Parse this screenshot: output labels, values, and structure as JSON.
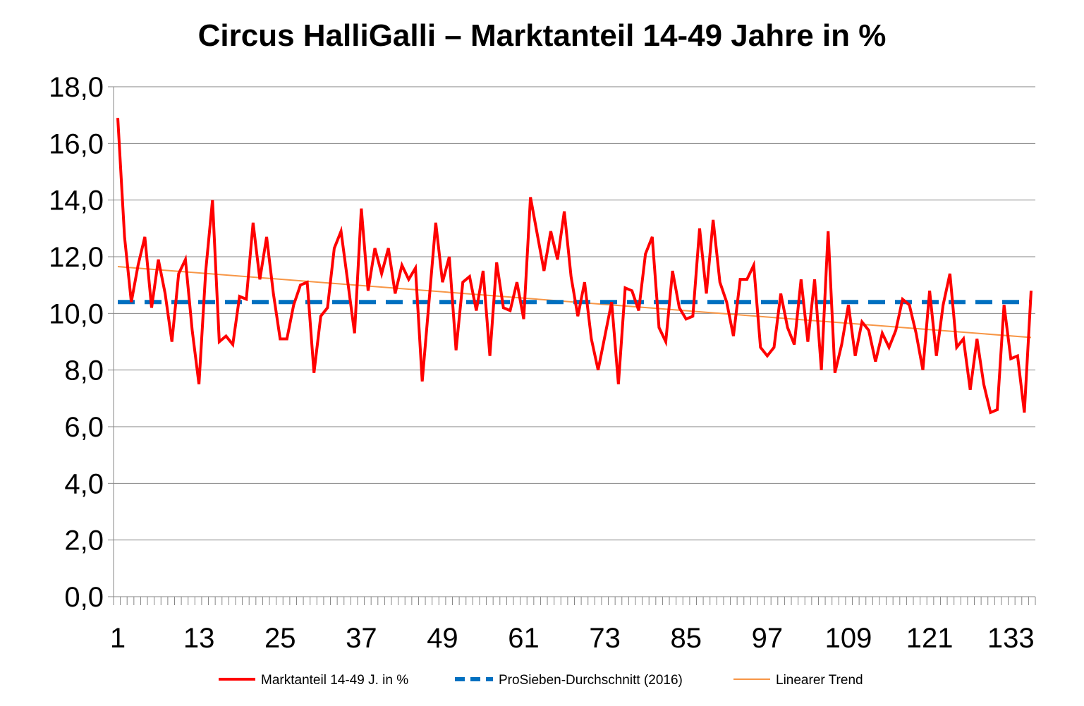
{
  "chart_data": {
    "type": "line",
    "title": "Circus HalliGalli – Marktanteil 14-49 Jahre in %",
    "xlabel": "",
    "ylabel": "",
    "ylim": [
      0,
      18
    ],
    "yticks": [
      "0,0",
      "2,0",
      "4,0",
      "6,0",
      "8,0",
      "10,0",
      "12,0",
      "14,0",
      "16,0",
      "18,0"
    ],
    "xticks": [
      "1",
      "13",
      "25",
      "37",
      "49",
      "61",
      "73",
      "85",
      "97",
      "109",
      "121",
      "133"
    ],
    "grid": "horizontal",
    "legend_position": "bottom",
    "series": [
      {
        "name": "Marktanteil 14-49 J. in %",
        "color": "#ff0000",
        "style": "solid",
        "x_start": 1,
        "values": [
          16.9,
          12.7,
          10.4,
          11.7,
          12.7,
          10.2,
          11.9,
          10.7,
          9.0,
          11.4,
          11.9,
          9.4,
          7.5,
          11.5,
          14.0,
          9.0,
          9.2,
          8.9,
          10.6,
          10.5,
          13.2,
          11.2,
          12.7,
          10.7,
          9.1,
          9.1,
          10.3,
          11.0,
          11.1,
          7.9,
          9.9,
          10.2,
          12.3,
          12.9,
          11.1,
          9.3,
          13.7,
          10.8,
          12.3,
          11.4,
          12.3,
          10.7,
          11.7,
          11.2,
          11.6,
          7.6,
          10.4,
          13.2,
          11.1,
          12.0,
          8.7,
          11.1,
          11.3,
          10.1,
          11.5,
          8.5,
          11.8,
          10.2,
          10.1,
          11.1,
          9.8,
          14.1,
          12.8,
          11.5,
          12.9,
          11.9,
          13.6,
          11.3,
          9.9,
          11.1,
          9.1,
          8.0,
          9.2,
          10.4,
          7.5,
          10.9,
          10.8,
          10.1,
          12.1,
          12.7,
          9.5,
          9.0,
          11.5,
          10.2,
          9.8,
          9.9,
          13.0,
          10.7,
          13.3,
          11.1,
          10.4,
          9.2,
          11.2,
          11.2,
          11.7,
          8.8,
          8.5,
          8.8,
          10.7,
          9.5,
          8.9,
          11.2,
          9.0,
          11.2,
          8.0,
          12.9,
          7.9,
          8.9,
          10.3,
          8.5,
          9.7,
          9.4,
          8.3,
          9.3,
          8.8,
          9.4,
          10.5,
          10.3,
          9.3,
          8.0,
          10.8,
          8.5,
          10.3,
          11.4,
          8.8,
          9.1,
          7.3,
          9.1,
          7.5,
          6.5,
          6.6,
          10.3,
          8.4,
          8.5,
          6.5,
          10.8
        ]
      },
      {
        "name": "ProSieben-Durchschnitt (2016)",
        "color": "#0070c0",
        "style": "dashed",
        "x_start": 1,
        "x_end": 136,
        "constant": 10.4
      },
      {
        "name": "Linearer Trend",
        "color": "#f79646",
        "style": "thin",
        "x_start": 1,
        "x_end": 136,
        "start_value": 11.65,
        "end_value": 9.15
      }
    ]
  }
}
